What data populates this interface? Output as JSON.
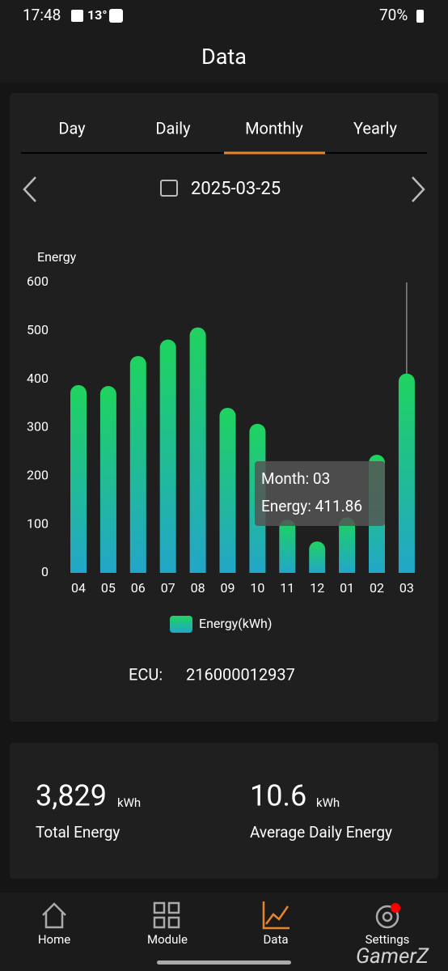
{
  "status_bar": {
    "time": "17:48",
    "temperature": "13°",
    "battery": "70%"
  },
  "header": {
    "title": "Data"
  },
  "tabs": [
    "Day",
    "Daily",
    "Monthly",
    "Yearly"
  ],
  "date": "2025-03-25",
  "chart_data": {
    "type": "bar",
    "y_label": "Energy",
    "categories": [
      "04",
      "05",
      "06",
      "07",
      "08",
      "09",
      "10",
      "11",
      "12",
      "01",
      "02",
      "03"
    ],
    "series": [
      {
        "name": "Energy(kWh)",
        "color": "#1fd35e",
        "color_bottom": "#22a6c9",
        "values": [
          388,
          386,
          448,
          482,
          507,
          341,
          308,
          110,
          65,
          115,
          244,
          411.86
        ]
      }
    ],
    "ylim": [
      0,
      600
    ],
    "yticks": [
      0,
      100,
      200,
      300,
      400,
      500,
      600
    ],
    "tooltip": [
      "Month: 03",
      "Energy: 411.86"
    ]
  },
  "ecu": {
    "label": "ECU:",
    "value": "216000012937"
  },
  "stats": [
    {
      "value": "3,829",
      "unit": "kWh",
      "label": "Total Energy"
    },
    {
      "value": "10.6",
      "unit": "kWh",
      "label": "Average Daily Energy"
    }
  ],
  "nav": [
    "Home",
    "Module",
    "Data",
    "Settings"
  ],
  "watermark": "GamerZ"
}
